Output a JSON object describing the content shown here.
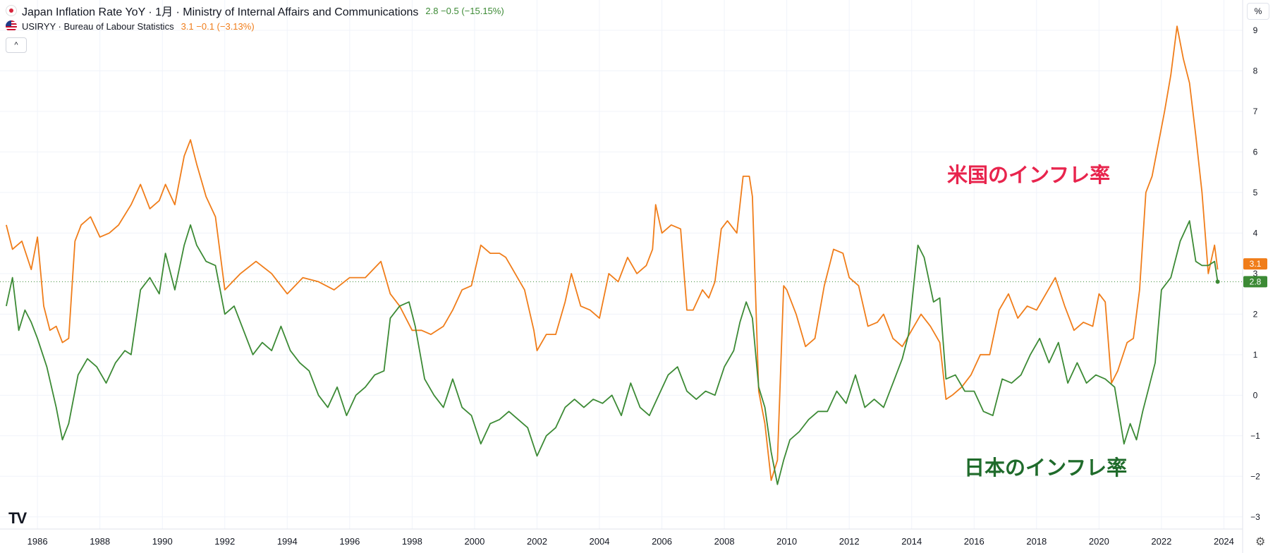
{
  "legend": {
    "series1_title": "Japan Inflation Rate YoY · 1月 · Ministry of Internal Affairs and Communications",
    "series1_values": "2.8  −0.5 (−15.15%)",
    "series2_title": "USIRYY · Bureau of Labour Statistics",
    "series2_values": "3.1  −0.1 (−3.13%)",
    "collapse_icon": "^"
  },
  "axis_unit": "%",
  "settings_icon": "⚙",
  "logo": "TV",
  "annotations": {
    "us": "米国のインフレ率",
    "jp": "日本のインフレ率"
  },
  "price_labels": {
    "us": "3.1",
    "jp": "2.8"
  },
  "colors": {
    "us": "#f07d1a",
    "jp": "#3c8a35"
  },
  "chart_data": {
    "type": "line",
    "title": "Japan Inflation Rate YoY vs USIRYY",
    "xlabel": "",
    "ylabel": "%",
    "xlim": [
      1984.8,
      2024.6
    ],
    "ylim": [
      -3.3,
      9.4
    ],
    "x_ticks": [
      1986,
      1988,
      1990,
      1992,
      1994,
      1996,
      1998,
      2000,
      2002,
      2004,
      2006,
      2008,
      2010,
      2012,
      2014,
      2016,
      2018,
      2020,
      2022,
      2024
    ],
    "y_ticks": [
      -3,
      -2,
      -1,
      0,
      1,
      2,
      3,
      4,
      5,
      6,
      7,
      8,
      9
    ],
    "grid": true,
    "last_value_line": 2.8,
    "series": [
      {
        "name": "USIRYY · Bureau of Labour Statistics",
        "color": "#f07d1a",
        "x": [
          1985.0,
          1985.2,
          1985.5,
          1985.8,
          1986.0,
          1986.2,
          1986.4,
          1986.6,
          1986.8,
          1987.0,
          1987.2,
          1987.4,
          1987.7,
          1988.0,
          1988.3,
          1988.6,
          1989.0,
          1989.3,
          1989.6,
          1989.9,
          1990.1,
          1990.4,
          1990.7,
          1990.9,
          1991.1,
          1991.4,
          1991.7,
          1992.0,
          1992.5,
          1993.0,
          1993.5,
          1994.0,
          1994.5,
          1995.0,
          1995.5,
          1996.0,
          1996.5,
          1997.0,
          1997.3,
          1997.6,
          1998.0,
          1998.3,
          1998.6,
          1999.0,
          1999.3,
          1999.6,
          1999.9,
          2000.2,
          2000.5,
          2000.8,
          2001.0,
          2001.3,
          2001.6,
          2001.9,
          2002.0,
          2002.3,
          2002.6,
          2002.9,
          2003.1,
          2003.4,
          2003.7,
          2004.0,
          2004.3,
          2004.6,
          2004.9,
          2005.2,
          2005.5,
          2005.7,
          2005.8,
          2006.0,
          2006.3,
          2006.6,
          2006.8,
          2007.0,
          2007.3,
          2007.5,
          2007.7,
          2007.9,
          2008.1,
          2008.4,
          2008.6,
          2008.8,
          2008.9,
          2009.1,
          2009.3,
          2009.5,
          2009.7,
          2009.9,
          2010.0,
          2010.3,
          2010.6,
          2010.9,
          2011.2,
          2011.5,
          2011.8,
          2012.0,
          2012.3,
          2012.6,
          2012.9,
          2013.1,
          2013.4,
          2013.7,
          2014.0,
          2014.3,
          2014.6,
          2014.9,
          2015.1,
          2015.3,
          2015.6,
          2015.9,
          2016.2,
          2016.5,
          2016.8,
          2017.1,
          2017.4,
          2017.7,
          2018.0,
          2018.3,
          2018.6,
          2018.9,
          2019.2,
          2019.5,
          2019.8,
          2020.0,
          2020.2,
          2020.4,
          2020.6,
          2020.9,
          2021.1,
          2021.3,
          2021.5,
          2021.7,
          2021.9,
          2022.1,
          2022.3,
          2022.5,
          2022.7,
          2022.9,
          2023.1,
          2023.3,
          2023.5,
          2023.7,
          2023.8
        ],
        "values": [
          4.2,
          3.6,
          3.8,
          3.1,
          3.9,
          2.2,
          1.6,
          1.7,
          1.3,
          1.4,
          3.8,
          4.2,
          4.4,
          3.9,
          4.0,
          4.2,
          4.7,
          5.2,
          4.6,
          4.8,
          5.2,
          4.7,
          5.9,
          6.3,
          5.7,
          4.9,
          4.4,
          2.6,
          3.0,
          3.3,
          3.0,
          2.5,
          2.9,
          2.8,
          2.6,
          2.9,
          2.9,
          3.3,
          2.5,
          2.2,
          1.6,
          1.6,
          1.5,
          1.7,
          2.1,
          2.6,
          2.7,
          3.7,
          3.5,
          3.5,
          3.4,
          3.0,
          2.6,
          1.6,
          1.1,
          1.5,
          1.5,
          2.3,
          3.0,
          2.2,
          2.1,
          1.9,
          3.0,
          2.8,
          3.4,
          3.0,
          3.2,
          3.6,
          4.7,
          4.0,
          4.2,
          4.1,
          2.1,
          2.1,
          2.6,
          2.4,
          2.8,
          4.1,
          4.3,
          4.0,
          5.4,
          5.4,
          4.9,
          0.1,
          -0.7,
          -2.1,
          -1.6,
          2.7,
          2.6,
          2.0,
          1.2,
          1.4,
          2.7,
          3.6,
          3.5,
          2.9,
          2.7,
          1.7,
          1.8,
          2.0,
          1.4,
          1.2,
          1.6,
          2.0,
          1.7,
          1.3,
          -0.1,
          0.0,
          0.2,
          0.5,
          1.0,
          1.0,
          2.1,
          2.5,
          1.9,
          2.2,
          2.1,
          2.5,
          2.9,
          2.2,
          1.6,
          1.8,
          1.7,
          2.5,
          2.3,
          0.3,
          0.6,
          1.3,
          1.4,
          2.6,
          5.0,
          5.4,
          6.2,
          7.0,
          7.9,
          9.1,
          8.3,
          7.7,
          6.4,
          5.0,
          3.0,
          3.7,
          3.1
        ]
      },
      {
        "name": "Japan Inflation Rate YoY",
        "color": "#3c8a35",
        "x": [
          1985.0,
          1985.2,
          1985.4,
          1985.6,
          1985.8,
          1986.0,
          1986.3,
          1986.6,
          1986.8,
          1987.0,
          1987.3,
          1987.6,
          1987.9,
          1988.2,
          1988.5,
          1988.8,
          1989.0,
          1989.3,
          1989.6,
          1989.9,
          1990.1,
          1990.4,
          1990.7,
          1990.9,
          1991.1,
          1991.4,
          1991.7,
          1992.0,
          1992.3,
          1992.6,
          1992.9,
          1993.2,
          1993.5,
          1993.8,
          1994.1,
          1994.4,
          1994.7,
          1995.0,
          1995.3,
          1995.6,
          1995.9,
          1996.2,
          1996.5,
          1996.8,
          1997.1,
          1997.3,
          1997.6,
          1997.9,
          1998.1,
          1998.4,
          1998.7,
          1999.0,
          1999.3,
          1999.6,
          1999.9,
          2000.2,
          2000.5,
          2000.8,
          2001.1,
          2001.4,
          2001.7,
          2002.0,
          2002.3,
          2002.6,
          2002.9,
          2003.2,
          2003.5,
          2003.8,
          2004.1,
          2004.4,
          2004.7,
          2005.0,
          2005.3,
          2005.6,
          2005.9,
          2006.2,
          2006.5,
          2006.8,
          2007.1,
          2007.4,
          2007.7,
          2008.0,
          2008.3,
          2008.5,
          2008.7,
          2008.9,
          2009.1,
          2009.3,
          2009.5,
          2009.7,
          2009.9,
          2010.1,
          2010.4,
          2010.7,
          2011.0,
          2011.3,
          2011.6,
          2011.9,
          2012.2,
          2012.5,
          2012.8,
          2013.1,
          2013.4,
          2013.7,
          2013.9,
          2014.2,
          2014.4,
          2014.7,
          2014.9,
          2015.1,
          2015.4,
          2015.7,
          2016.0,
          2016.3,
          2016.6,
          2016.9,
          2017.2,
          2017.5,
          2017.8,
          2018.1,
          2018.4,
          2018.7,
          2019.0,
          2019.3,
          2019.6,
          2019.9,
          2020.2,
          2020.5,
          2020.8,
          2021.0,
          2021.2,
          2021.4,
          2021.6,
          2021.8,
          2022.0,
          2022.3,
          2022.6,
          2022.9,
          2023.1,
          2023.3,
          2023.5,
          2023.7,
          2023.8
        ],
        "values": [
          2.2,
          2.9,
          1.6,
          2.1,
          1.8,
          1.4,
          0.7,
          -0.3,
          -1.1,
          -0.7,
          0.5,
          0.9,
          0.7,
          0.3,
          0.8,
          1.1,
          1.0,
          2.6,
          2.9,
          2.5,
          3.5,
          2.6,
          3.7,
          4.2,
          3.7,
          3.3,
          3.2,
          2.0,
          2.2,
          1.6,
          1.0,
          1.3,
          1.1,
          1.7,
          1.1,
          0.8,
          0.6,
          0.0,
          -0.3,
          0.2,
          -0.5,
          0.0,
          0.2,
          0.5,
          0.6,
          1.9,
          2.2,
          2.3,
          1.7,
          0.4,
          0.0,
          -0.3,
          0.4,
          -0.3,
          -0.5,
          -1.2,
          -0.7,
          -0.6,
          -0.4,
          -0.6,
          -0.8,
          -1.5,
          -1.0,
          -0.8,
          -0.3,
          -0.1,
          -0.3,
          -0.1,
          -0.2,
          0.0,
          -0.5,
          0.3,
          -0.3,
          -0.5,
          0.0,
          0.5,
          0.7,
          0.1,
          -0.1,
          0.1,
          0.0,
          0.7,
          1.1,
          1.8,
          2.3,
          1.9,
          0.2,
          -0.3,
          -1.4,
          -2.2,
          -1.6,
          -1.1,
          -0.9,
          -0.6,
          -0.4,
          -0.4,
          0.1,
          -0.2,
          0.5,
          -0.3,
          -0.1,
          -0.3,
          0.3,
          0.9,
          1.5,
          3.7,
          3.4,
          2.3,
          2.4,
          0.4,
          0.5,
          0.1,
          0.1,
          -0.4,
          -0.5,
          0.4,
          0.3,
          0.5,
          1.0,
          1.4,
          0.8,
          1.3,
          0.3,
          0.8,
          0.3,
          0.5,
          0.4,
          0.2,
          -1.2,
          -0.7,
          -1.1,
          -0.4,
          0.2,
          0.8,
          2.6,
          2.9,
          3.8,
          4.3,
          3.3,
          3.2,
          3.2,
          3.3,
          2.8
        ]
      }
    ]
  }
}
